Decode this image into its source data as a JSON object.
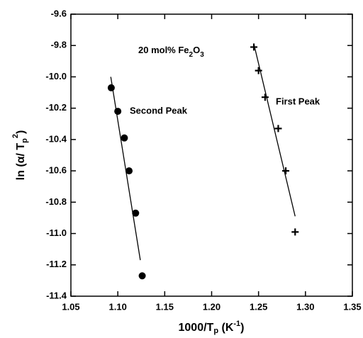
{
  "chart_data": {
    "type": "scatter",
    "annotation": [
      "20 mol% Fe",
      "2",
      "O",
      "3"
    ],
    "xlabel": [
      "1000/T",
      "p",
      " (K",
      "-1",
      ")"
    ],
    "ylabel": [
      "ln (α/ T",
      "p",
      "2",
      ")"
    ],
    "xlim": [
      1.05,
      1.35
    ],
    "xticks": [
      {
        "value": 1.05,
        "label": "1.05"
      },
      {
        "value": 1.1,
        "label": "1.10"
      },
      {
        "value": 1.15,
        "label": "1.15"
      },
      {
        "value": 1.2,
        "label": "1.20"
      },
      {
        "value": 1.25,
        "label": "1.25"
      },
      {
        "value": 1.3,
        "label": "1.30"
      },
      {
        "value": 1.35,
        "label": "1.35"
      }
    ],
    "ylim": [
      -11.4,
      -9.6
    ],
    "yticks": [
      -9.6,
      -9.8,
      {
        "value": -10,
        "label": "-10.0"
      },
      -10.2,
      -10.4,
      -10.6,
      -10.8,
      {
        "value": -11,
        "label": "-11.0"
      },
      -11.2,
      -11.4
    ],
    "series": [
      {
        "name": "Second Peak",
        "marker": "circle",
        "color": "#000000",
        "x": [
          1.093,
          1.1,
          1.107,
          1.112,
          1.119,
          1.126
        ],
        "values": [
          -10.07,
          -10.22,
          -10.39,
          -10.6,
          -10.87,
          -11.27
        ],
        "fit": {
          "x": [
            1.0925,
            1.124
          ],
          "values": [
            -10.0,
            -11.17
          ]
        }
      },
      {
        "name": "First Peak",
        "marker": "plus",
        "color": "#000000",
        "x": [
          1.245,
          1.25,
          1.257,
          1.271,
          1.279,
          1.289
        ],
        "values": [
          -9.81,
          -9.96,
          -10.13,
          -10.33,
          -10.6,
          -10.99
        ],
        "fit": {
          "x": [
            1.245,
            1.289
          ],
          "values": [
            -9.79,
            -10.89
          ]
        }
      }
    ]
  }
}
